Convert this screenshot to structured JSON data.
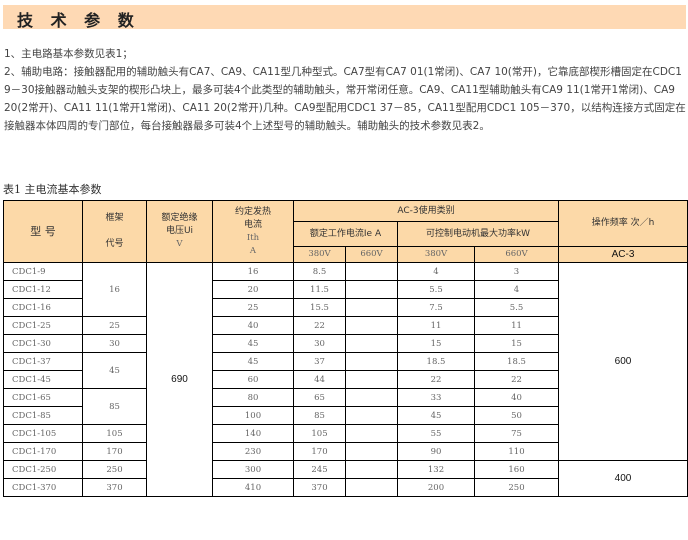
{
  "title": "技 术 参 数",
  "paragraphs": [
    "1、主电路基本参数见表1；",
    "2、辅助电路：接触器配用的辅助触头有CA7、CA9、CA11型几种型式。CA7型有CA7 01(1常闭)、CA7 10(常开)，它靠底部楔形槽固定在CDC1 9－30接触器动触头支架的楔形凸块上，最多可装4个此类型的辅助触头，常开常闭任意。CA9、CA11型辅助触头有CA9 11(1常开1常闭)、CA9 20(2常开)、CA11 11(1常开1常闭)、CA11 20(2常开)几种。CA9型配用CDC1 37－85，CA11型配用CDC1 105－370，以结构连接方式固定在接触器本体四周的专门部位，每台接触器最多可装4个上述型号的辅助触头。辅助触头的技术参数见表2。"
  ],
  "table": {
    "caption": "表1  主电流基本参数",
    "headers": {
      "model": "型  号",
      "frame_1": "框架",
      "frame_2": "代号",
      "ui_1": "额定绝缘",
      "ui_2": "电压Ui",
      "ui_3": "V",
      "ith_1": "约定发热",
      "ith_2": "电流",
      "ith_3": "Ith",
      "ith_4": "A",
      "ac3": "AC-3使用类别",
      "freq": "操作频率 次／h",
      "ie": "额定工作电流Ie A",
      "kw": "可控制电动机最大功率kW",
      "ie_380": "380V",
      "ie_660": "660V",
      "kw_380": "380V",
      "kw_660": "660V",
      "freq_ac3": "AC-3"
    },
    "rows": [
      {
        "model": "CDC1-9",
        "ith": "16",
        "ie380": "8.5",
        "ie660": "",
        "kw380": "4",
        "kw660": "3"
      },
      {
        "model": "CDC1-12",
        "ith": "20",
        "ie380": "11.5",
        "ie660": "",
        "kw380": "5.5",
        "kw660": "4"
      },
      {
        "model": "CDC1-16",
        "ith": "25",
        "ie380": "15.5",
        "ie660": "",
        "kw380": "7.5",
        "kw660": "5.5"
      },
      {
        "model": "CDC1-25",
        "ith": "40",
        "ie380": "22",
        "ie660": "",
        "kw380": "11",
        "kw660": "11"
      },
      {
        "model": "CDC1-30",
        "ith": "45",
        "ie380": "30",
        "ie660": "",
        "kw380": "15",
        "kw660": "15"
      },
      {
        "model": "CDC1-37",
        "ith": "45",
        "ie380": "37",
        "ie660": "",
        "kw380": "18.5",
        "kw660": "18.5"
      },
      {
        "model": "CDC1-45",
        "ith": "60",
        "ie380": "44",
        "ie660": "",
        "kw380": "22",
        "kw660": "22"
      },
      {
        "model": "CDC1-65",
        "ith": "80",
        "ie380": "65",
        "ie660": "",
        "kw380": "33",
        "kw660": "40"
      },
      {
        "model": "CDC1-85",
        "ith": "100",
        "ie380": "85",
        "ie660": "",
        "kw380": "45",
        "kw660": "50"
      },
      {
        "model": "CDC1-105",
        "ith": "140",
        "ie380": "105",
        "ie660": "",
        "kw380": "55",
        "kw660": "75"
      },
      {
        "model": "CDC1-170",
        "ith": "230",
        "ie380": "170",
        "ie660": "",
        "kw380": "90",
        "kw660": "110"
      },
      {
        "model": "CDC1-250",
        "ith": "300",
        "ie380": "245",
        "ie660": "",
        "kw380": "132",
        "kw660": "160"
      },
      {
        "model": "CDC1-370",
        "ith": "410",
        "ie380": "370",
        "ie660": "",
        "kw380": "200",
        "kw660": "250"
      }
    ],
    "frames": [
      "16",
      "25",
      "30",
      "45",
      "85",
      "105",
      "170",
      "250",
      "370"
    ],
    "ui_value": "690",
    "freq_values": [
      "600",
      "400"
    ]
  },
  "colors": {
    "title_bg": "#fed9b4",
    "header_bg": "#fcd9a8"
  }
}
